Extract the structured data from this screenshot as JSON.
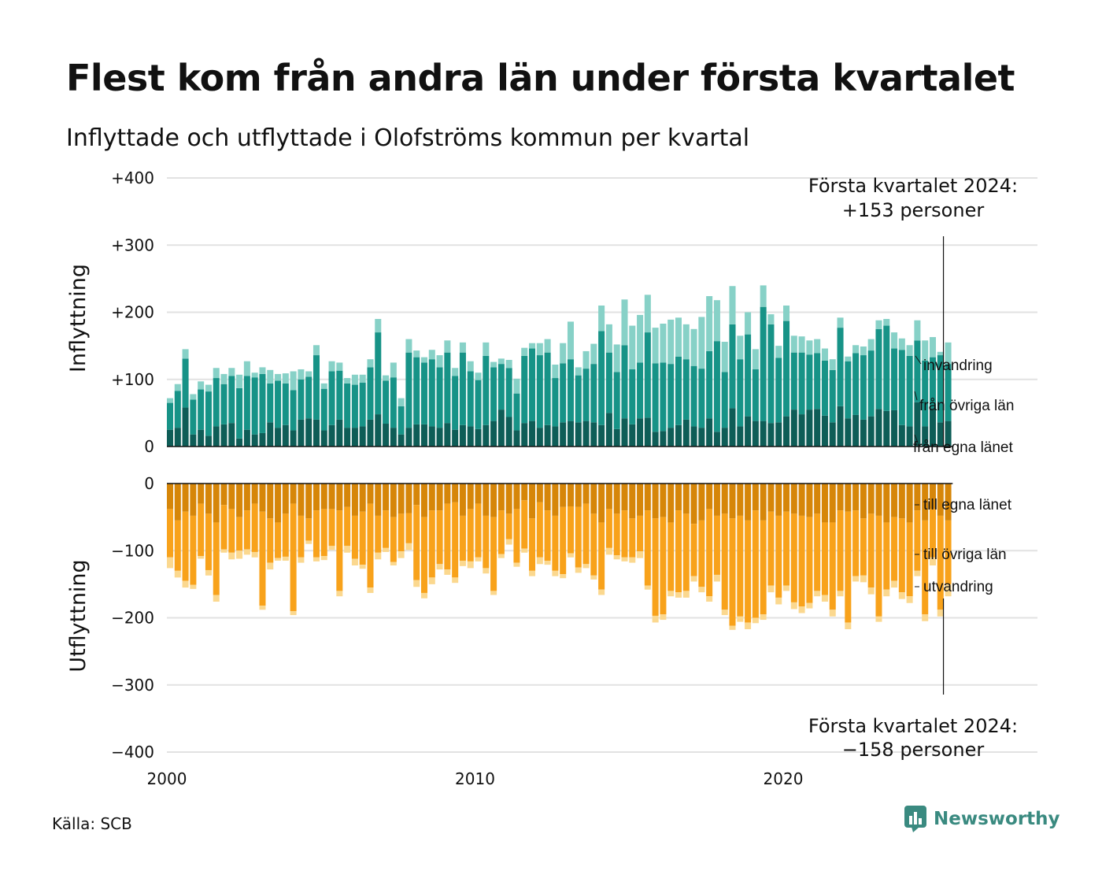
{
  "title": "Flest kom från andra län under första kvartalet",
  "subtitle": "Inflyttade och utflyttade i Olofströms kommun per kvartal",
  "source": "Källa: SCB",
  "brand": {
    "name": "Newsworthy",
    "icon": "newsworthy-logo-icon",
    "color": "#3a8a80"
  },
  "colors": {
    "in_own": "#0e5d57",
    "in_other": "#179387",
    "in_imm": "#87d1c7",
    "out_own": "#d68609",
    "out_other": "#f8a21b",
    "out_emig": "#fbd88f",
    "grid": "#e2e2e2"
  },
  "annotations": {
    "top": [
      "Första kvartalet 2024:",
      "+153 personer"
    ],
    "bottom": [
      "Första kvartalet 2024:",
      "−158 personer"
    ]
  },
  "chart_data": {
    "type": "bar",
    "stacked": true,
    "panels": [
      {
        "name": "inflyttning",
        "ylabel": "Inflyttning",
        "ylim": [
          0,
          400
        ],
        "yticks": [
          0,
          100,
          200,
          300,
          400
        ],
        "ytick_labels": [
          "0",
          "+100",
          "+200",
          "+300",
          "+400"
        ]
      },
      {
        "name": "utflyttning",
        "ylabel": "Utflyttning",
        "ylim": [
          -400,
          0
        ],
        "yticks": [
          0,
          -100,
          -200,
          -300,
          -400
        ],
        "ytick_labels": [
          "0",
          "−100",
          "−200",
          "−300",
          "−400"
        ]
      }
    ],
    "x_start": 2000.0,
    "x_step": 0.25,
    "xlim": [
      2000,
      2028.25
    ],
    "xticks": [
      2000,
      2010,
      2020
    ],
    "xtick_labels": [
      "2000",
      "2010",
      "2020"
    ],
    "series_in": [
      {
        "name": "från egna länet",
        "values": [
          25,
          28,
          58,
          18,
          25,
          16,
          30,
          33,
          35,
          12,
          25,
          18,
          20,
          36,
          28,
          32,
          24,
          40,
          42,
          40,
          24,
          32,
          40,
          28,
          28,
          30,
          40,
          48,
          34,
          28,
          18,
          28,
          33,
          33,
          30,
          28,
          35,
          25,
          32,
          30,
          26,
          32,
          38,
          55,
          44,
          24,
          35,
          38,
          28,
          32,
          30,
          36,
          38,
          36,
          38,
          36,
          32,
          50,
          26,
          42,
          33,
          42,
          43,
          22,
          23,
          28,
          32,
          40,
          30,
          28,
          42,
          22,
          28,
          57,
          30,
          45,
          38,
          38,
          35,
          36,
          45,
          55,
          48,
          55,
          56,
          46,
          36,
          60,
          42,
          47,
          40,
          45,
          56,
          53,
          54,
          32,
          30,
          66,
          30,
          57,
          36,
          38
        ]
      },
      {
        "name": "från övriga län",
        "values": [
          40,
          55,
          73,
          52,
          60,
          66,
          72,
          60,
          70,
          75,
          80,
          85,
          88,
          58,
          70,
          62,
          60,
          60,
          62,
          96,
          62,
          80,
          73,
          66,
          64,
          65,
          78,
          122,
          64,
          75,
          42,
          112,
          100,
          92,
          100,
          90,
          105,
          80,
          108,
          82,
          73,
          103,
          80,
          68,
          73,
          55,
          100,
          108,
          108,
          108,
          72,
          88,
          92,
          70,
          78,
          87,
          140,
          90,
          85,
          109,
          82,
          83,
          127,
          102,
          102,
          95,
          102,
          90,
          90,
          88,
          100,
          135,
          83,
          125,
          100,
          122,
          77,
          170,
          147,
          96,
          142,
          85,
          92,
          82,
          83,
          82,
          78,
          117,
          85,
          92,
          96,
          98,
          119,
          127,
          92,
          112,
          105,
          92,
          98,
          76,
          100,
          85
        ]
      },
      {
        "name": "invandring",
        "values": [
          7,
          10,
          14,
          8,
          12,
          10,
          15,
          15,
          12,
          20,
          22,
          7,
          10,
          20,
          10,
          15,
          28,
          15,
          8,
          15,
          8,
          15,
          12,
          8,
          15,
          12,
          12,
          20,
          8,
          22,
          12,
          20,
          10,
          8,
          14,
          18,
          18,
          12,
          15,
          15,
          11,
          20,
          8,
          8,
          12,
          22,
          12,
          8,
          18,
          20,
          20,
          30,
          56,
          12,
          26,
          30,
          38,
          42,
          41,
          68,
          65,
          71,
          56,
          53,
          58,
          66,
          58,
          52,
          55,
          77,
          82,
          61,
          45,
          57,
          35,
          33,
          30,
          32,
          15,
          18,
          23,
          25,
          24,
          21,
          21,
          18,
          16,
          15,
          7,
          12,
          13,
          17,
          13,
          10,
          24,
          17,
          16,
          30,
          30,
          30,
          5,
          32
        ]
      }
    ],
    "series_out": [
      {
        "name": "till egna länet",
        "values": [
          -38,
          -55,
          -42,
          -48,
          -30,
          -45,
          -58,
          -32,
          -38,
          -50,
          -40,
          -30,
          -42,
          -52,
          -58,
          -45,
          -30,
          -48,
          -52,
          -40,
          -38,
          -38,
          -40,
          -35,
          -48,
          -42,
          -30,
          -48,
          -40,
          -50,
          -45,
          -44,
          -32,
          -50,
          -40,
          -40,
          -30,
          -28,
          -48,
          -38,
          -30,
          -48,
          -50,
          -40,
          -45,
          -38,
          -25,
          -52,
          -28,
          -40,
          -48,
          -35,
          -34,
          -35,
          -30,
          -45,
          -58,
          -38,
          -45,
          -40,
          -52,
          -48,
          -40,
          -52,
          -50,
          -58,
          -40,
          -45,
          -60,
          -55,
          -38,
          -48,
          -45,
          -52,
          -48,
          -55,
          -40,
          -55,
          -42,
          -48,
          -42,
          -45,
          -48,
          -50,
          -45,
          -58,
          -58,
          -40,
          -42,
          -40,
          -52,
          -45,
          -48,
          -58,
          -50,
          -52,
          -58,
          -40,
          -55,
          -38,
          -48,
          -55
        ]
      },
      {
        "name": "till övriga län",
        "values": [
          -72,
          -75,
          -103,
          -103,
          -78,
          -84,
          -108,
          -66,
          -65,
          -50,
          -58,
          -72,
          -140,
          -66,
          -53,
          -64,
          -160,
          -62,
          -33,
          -70,
          -70,
          -55,
          -120,
          -58,
          -64,
          -79,
          -125,
          -55,
          -56,
          -67,
          -56,
          -45,
          -112,
          -113,
          -100,
          -80,
          -98,
          -112,
          -67,
          -78,
          -80,
          -78,
          -110,
          -65,
          -38,
          -80,
          -72,
          -78,
          -82,
          -75,
          -82,
          -100,
          -70,
          -90,
          -90,
          -92,
          -100,
          -58,
          -62,
          -70,
          -58,
          -53,
          -112,
          -145,
          -145,
          -102,
          -122,
          -115,
          -78,
          -99,
          -130,
          -88,
          -143,
          -160,
          -150,
          -152,
          -160,
          -140,
          -110,
          -122,
          -110,
          -132,
          -135,
          -128,
          -115,
          -108,
          -130,
          -120,
          -165,
          -98,
          -85,
          -110,
          -150,
          -100,
          -95,
          -110,
          -110,
          -90,
          -140,
          -72,
          -140,
          -95
        ]
      },
      {
        "name": "utvandring",
        "values": [
          -16,
          -10,
          -10,
          -6,
          -4,
          -8,
          -10,
          -5,
          -10,
          -12,
          -8,
          -8,
          -6,
          -10,
          -4,
          -6,
          -6,
          -8,
          -5,
          -6,
          -6,
          -6,
          -8,
          -10,
          -10,
          -6,
          -8,
          -10,
          -6,
          -5,
          -10,
          -10,
          -10,
          -8,
          -10,
          -8,
          -8,
          -8,
          -8,
          -10,
          -6,
          -8,
          -6,
          -6,
          -8,
          -6,
          -6,
          -8,
          -10,
          -6,
          -8,
          -6,
          -6,
          -8,
          -6,
          -6,
          -8,
          -10,
          -6,
          -6,
          -8,
          -10,
          -6,
          -10,
          -8,
          -8,
          -8,
          -10,
          -8,
          -8,
          -8,
          -10,
          -8,
          -6,
          -8,
          -10,
          -8,
          -8,
          -10,
          -10,
          -8,
          -10,
          -10,
          -8,
          -8,
          -10,
          -10,
          -8,
          -10,
          -8,
          -10,
          -10,
          -8,
          -10,
          -10,
          -10,
          -10,
          -8,
          -10,
          -12,
          -10,
          -18
        ]
      }
    ],
    "segment_labels_in": [
      "invandring",
      "från övriga län",
      "från egna länet"
    ],
    "segment_labels_out": [
      "till egna länet",
      "till övriga län",
      "utvandring"
    ]
  }
}
